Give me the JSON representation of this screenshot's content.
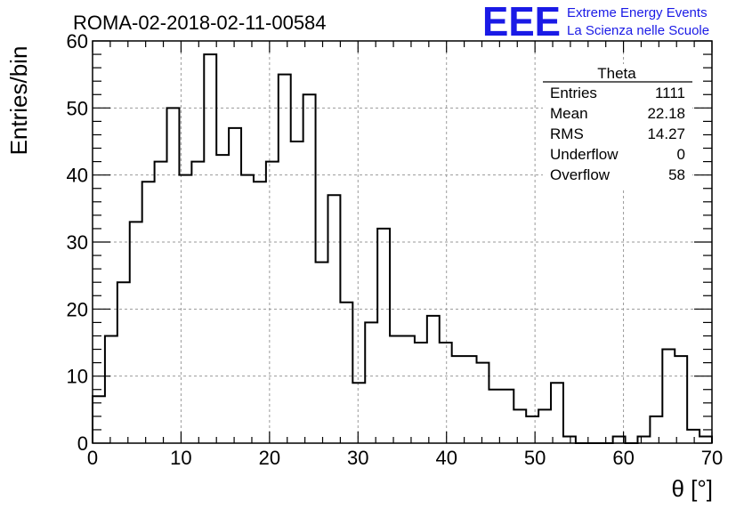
{
  "chart_data": {
    "type": "bar",
    "title": "ROMA-02-2018-02-11-00584",
    "xlabel": "θ [°]",
    "ylabel": "Entries/bin",
    "xlim": [
      0,
      70
    ],
    "ylim": [
      0,
      60
    ],
    "xticks": [
      "0",
      "10",
      "20",
      "30",
      "40",
      "50",
      "60",
      "70"
    ],
    "yticks": [
      "0",
      "10",
      "20",
      "30",
      "40",
      "50",
      "60"
    ],
    "grid": true,
    "bin_width": 1.4,
    "values": [
      7,
      16,
      24,
      33,
      39,
      42,
      50,
      40,
      42,
      58,
      43,
      47,
      40,
      39,
      42,
      55,
      45,
      52,
      27,
      37,
      21,
      9,
      18,
      32,
      16,
      16,
      15,
      19,
      15,
      13,
      13,
      12,
      8,
      8,
      5,
      4,
      5,
      9,
      1,
      0,
      0,
      0,
      1,
      0,
      1,
      4,
      14,
      13,
      2,
      1
    ],
    "stats": {
      "title": "Theta",
      "rows": [
        {
          "label": "Entries",
          "value": "1111"
        },
        {
          "label": "Mean",
          "value": "22.18"
        },
        {
          "label": "RMS",
          "value": "14.27"
        },
        {
          "label": "Underflow",
          "value": "0"
        },
        {
          "label": "Overflow",
          "value": "58"
        }
      ]
    }
  },
  "logo": {
    "mark": "EEE",
    "line1": "Extreme Energy Events",
    "line2": "La Scienza nelle Scuole"
  }
}
